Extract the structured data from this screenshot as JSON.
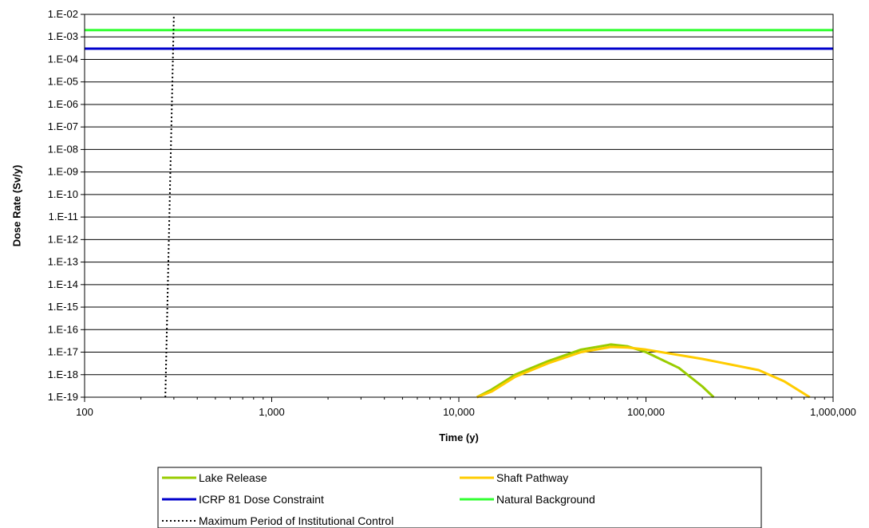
{
  "chart_data": {
    "type": "line",
    "title": "",
    "xlabel": "Time (y)",
    "ylabel": "Dose Rate (Sv/y)",
    "x_scale": "log",
    "y_scale": "log",
    "xlim": [
      100,
      1000000
    ],
    "ylim": [
      1e-19,
      0.01
    ],
    "x_ticks": [
      100,
      1000,
      10000,
      100000,
      1000000
    ],
    "x_tick_labels": [
      "100",
      "1,000",
      "10,000",
      "100,000",
      "1,000,000"
    ],
    "y_ticks": [
      0.01,
      0.001,
      0.0001,
      1e-05,
      1e-06,
      1e-07,
      1e-08,
      1e-09,
      1e-10,
      1e-11,
      1e-12,
      1e-13,
      1e-14,
      1e-15,
      1e-16,
      1e-17,
      1e-18,
      1e-19
    ],
    "y_tick_labels": [
      "1.E-02",
      "1.E-03",
      "1.E-04",
      "1.E-05",
      "1.E-06",
      "1.E-07",
      "1.E-08",
      "1.E-09",
      "1.E-10",
      "1.E-11",
      "1.E-12",
      "1.E-13",
      "1.E-14",
      "1.E-15",
      "1.E-16",
      "1.E-17",
      "1.E-18",
      "1.E-19"
    ],
    "grid": "horizontal",
    "legend_position": "bottom",
    "series": [
      {
        "name": "Lake Release",
        "color": "#99cc00",
        "style": "solid",
        "points": [
          [
            12500,
            1e-19
          ],
          [
            15000,
            2.2e-19
          ],
          [
            20000,
            1e-18
          ],
          [
            30000,
            4e-18
          ],
          [
            45000,
            1.3e-17
          ],
          [
            65000,
            2.2e-17
          ],
          [
            80000,
            1.8e-17
          ],
          [
            100000,
            1e-17
          ],
          [
            150000,
            2e-18
          ],
          [
            200000,
            3e-19
          ],
          [
            230000,
            1e-19
          ]
        ]
      },
      {
        "name": "Shaft Pathway",
        "color": "#ffcc00",
        "style": "solid",
        "points": [
          [
            12500,
            1e-19
          ],
          [
            15000,
            1.8e-19
          ],
          [
            20000,
            8e-19
          ],
          [
            30000,
            3.2e-18
          ],
          [
            45000,
            1e-17
          ],
          [
            65000,
            1.7e-17
          ],
          [
            80000,
            1.6e-17
          ],
          [
            100000,
            1.3e-17
          ],
          [
            200000,
            5e-18
          ],
          [
            400000,
            1.6e-18
          ],
          [
            550000,
            5e-19
          ],
          [
            750000,
            1e-19
          ]
        ]
      },
      {
        "name": "ICRP 81 Dose Constraint",
        "color": "#0000cc",
        "style": "solid",
        "points": [
          [
            100,
            0.0003
          ],
          [
            1000000,
            0.0003
          ]
        ]
      },
      {
        "name": "Natural Background",
        "color": "#33ff33",
        "style": "solid",
        "points": [
          [
            100,
            0.002
          ],
          [
            1000000,
            0.002
          ]
        ]
      },
      {
        "name": "Maximum Period of Institutional Control",
        "color": "#000000",
        "style": "dotted",
        "points": [
          [
            270,
            1e-19
          ],
          [
            300,
            0.01
          ]
        ]
      }
    ],
    "legend_rows": [
      [
        "Lake Release",
        "Shaft Pathway"
      ],
      [
        "ICRP 81 Dose Constraint",
        "Natural Background"
      ],
      [
        "Maximum Period of Institutional Control"
      ]
    ]
  }
}
